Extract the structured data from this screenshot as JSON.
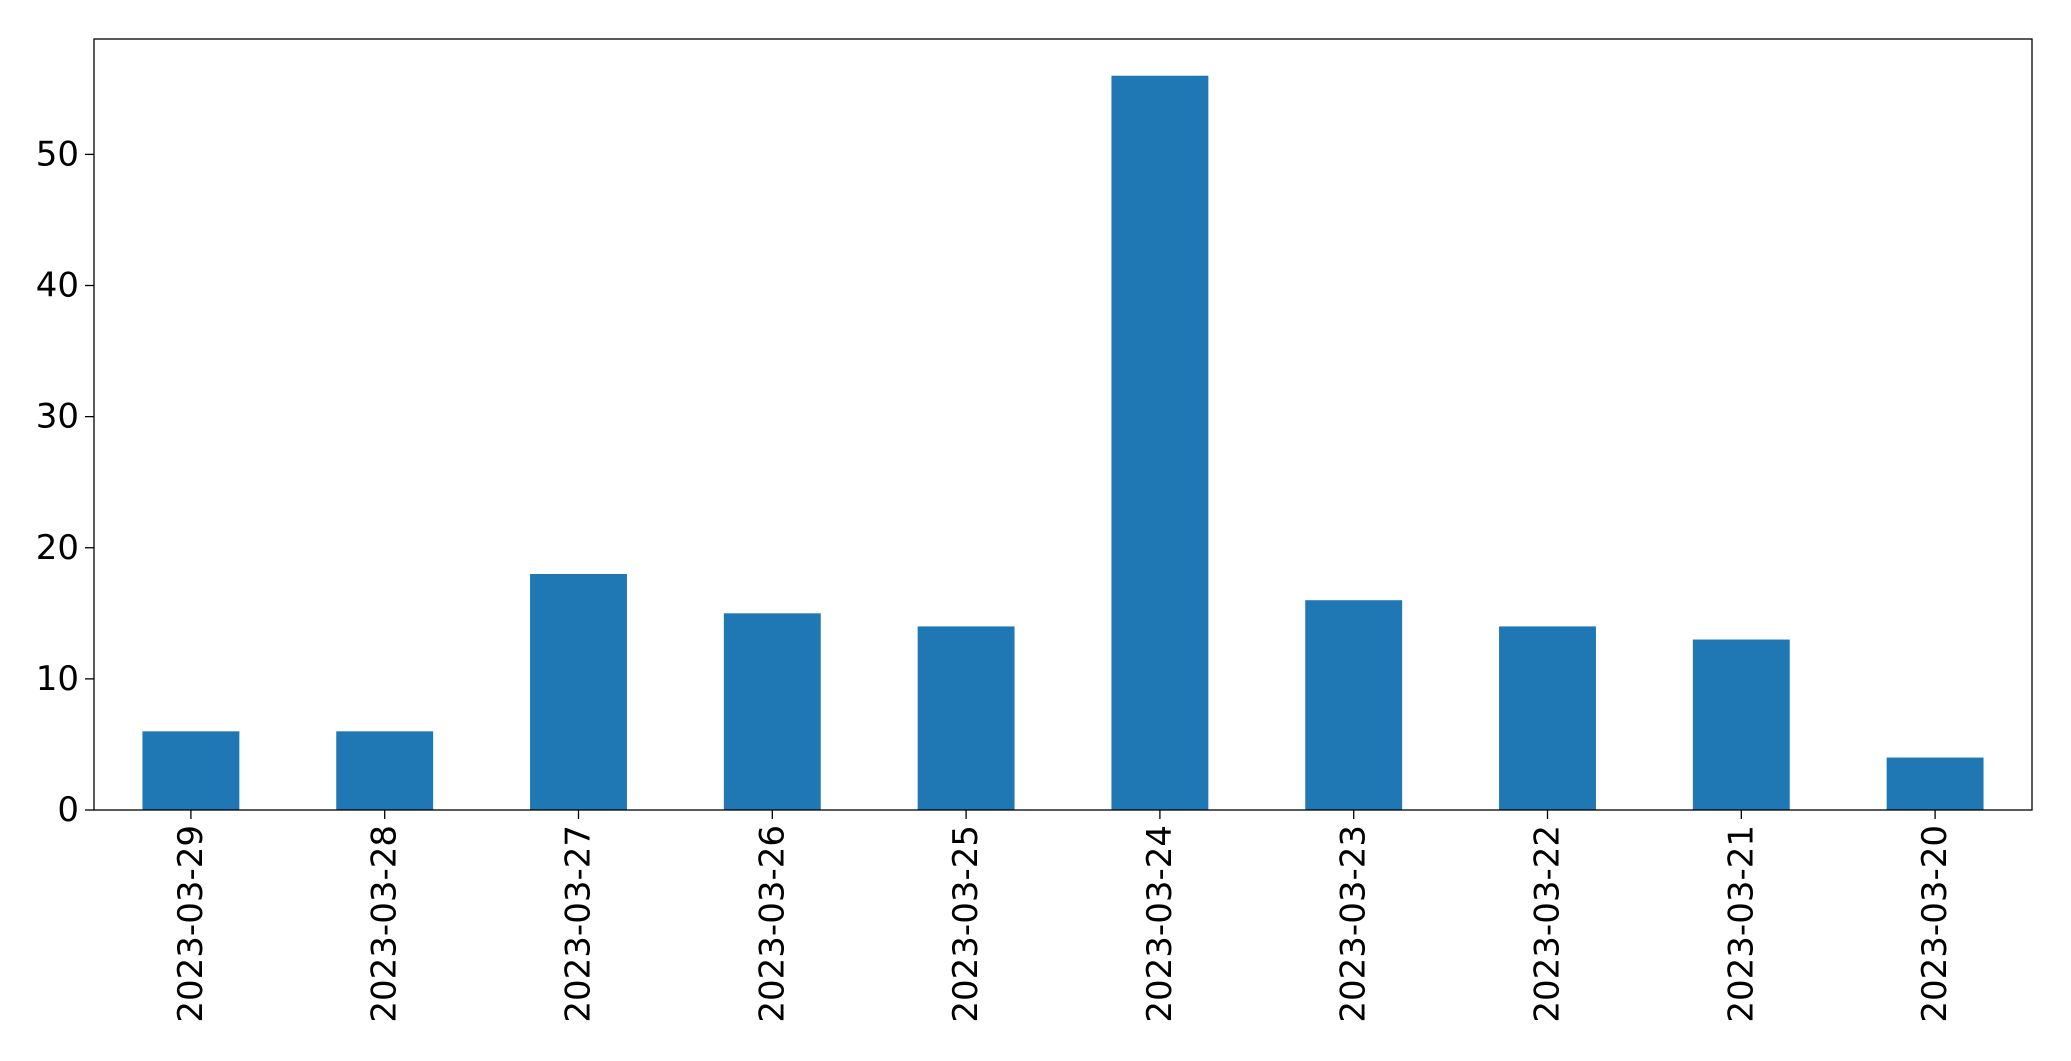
{
  "chart_data": {
    "type": "bar",
    "title": "",
    "xlabel": "",
    "ylabel": "",
    "categories": [
      "2023-03-29",
      "2023-03-28",
      "2023-03-27",
      "2023-03-26",
      "2023-03-25",
      "2023-03-24",
      "2023-03-23",
      "2023-03-22",
      "2023-03-21",
      "2023-03-20"
    ],
    "values": [
      6,
      6,
      18,
      15,
      14,
      56,
      16,
      14,
      13,
      4
    ],
    "ylim": [
      0,
      58.8
    ],
    "yticks": [
      0,
      10,
      20,
      30,
      40,
      50
    ],
    "grid": false,
    "legend": "none",
    "bar_color": "#1f77b4",
    "x_tick_rotation": "vertical"
  }
}
